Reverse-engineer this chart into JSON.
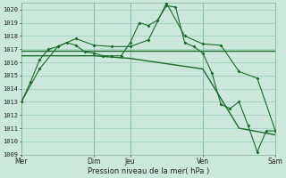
{
  "bg_color": "#cce8dd",
  "grid_color": "#99ccbb",
  "line_color": "#1a6b2a",
  "title": "Pression niveau de la mer( hPa )",
  "ylim": [
    1009,
    1020.5
  ],
  "yticks": [
    1009,
    1010,
    1011,
    1012,
    1013,
    1014,
    1015,
    1016,
    1017,
    1018,
    1019,
    1020
  ],
  "xtick_labels": [
    "Mer",
    "Dim",
    "Jeu",
    "Ven",
    "Sam"
  ],
  "xtick_positions": [
    0,
    24,
    36,
    60,
    84
  ],
  "vlines": [
    0,
    24,
    36,
    60,
    84
  ],
  "series1_x": [
    0,
    3,
    6,
    9,
    12,
    15,
    18,
    21,
    24,
    27,
    30,
    33,
    36,
    39,
    42,
    45,
    48,
    51,
    54,
    57,
    60,
    63,
    66,
    69,
    72,
    75,
    78,
    81,
    84
  ],
  "series1_y": [
    1013.0,
    1014.5,
    1016.2,
    1017.0,
    1017.2,
    1017.5,
    1017.3,
    1016.8,
    1016.7,
    1016.5,
    1016.5,
    1016.5,
    1017.5,
    1019.0,
    1018.8,
    1019.2,
    1020.3,
    1020.2,
    1017.5,
    1017.2,
    1016.7,
    1015.2,
    1012.8,
    1012.5,
    1013.0,
    1011.2,
    1009.2,
    1010.8,
    1010.8
  ],
  "series2_x": [
    0,
    6,
    12,
    18,
    24,
    30,
    36,
    42,
    48,
    54,
    60,
    66,
    72,
    78,
    84
  ],
  "series2_y": [
    1013.0,
    1015.5,
    1017.2,
    1017.8,
    1017.3,
    1017.2,
    1017.2,
    1017.7,
    1020.5,
    1018.0,
    1017.4,
    1017.3,
    1015.3,
    1014.8,
    1010.8
  ],
  "series3_x": [
    0,
    84
  ],
  "series3_y": [
    1016.9,
    1016.9
  ],
  "series4_x": [
    0,
    24,
    36,
    60,
    72,
    84
  ],
  "series4_y": [
    1016.5,
    1016.5,
    1016.3,
    1015.5,
    1011.0,
    1010.5
  ]
}
